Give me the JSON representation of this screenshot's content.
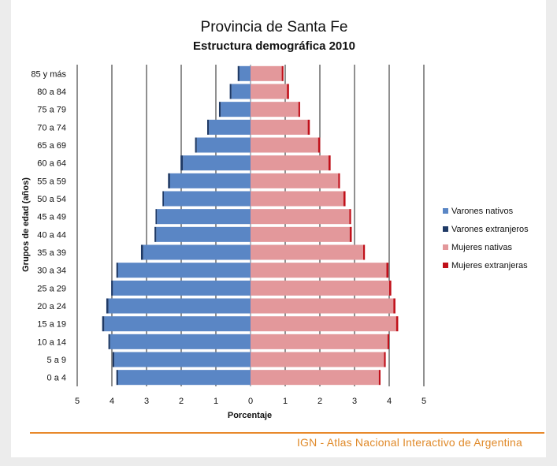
{
  "chart_data": {
    "type": "bar",
    "title": "Provincia de Santa Fe",
    "subtitle": "Estructura demográfica 2010",
    "xlabel": "Porcentaje",
    "ylabel": "Grupos de edad (años)",
    "xlim": [
      -5,
      5
    ],
    "x_tick_labels": [
      "5",
      "4",
      "3",
      "2",
      "1",
      "0",
      "1",
      "2",
      "3",
      "4",
      "5"
    ],
    "grid": true,
    "legend_position": "right",
    "categories": [
      "85 y más",
      "80 a 84",
      "75 a 79",
      "70 a 74",
      "65 a 69",
      "60 a 64",
      "55 a 59",
      "50 a 54",
      "45 a 49",
      "40 a 44",
      "35 a 39",
      "30 a 34",
      "25 a 29",
      "20 a 24",
      "15 a 19",
      "10 a 14",
      "5 a 9",
      "0 a 4"
    ],
    "series": [
      {
        "name": "Varones nativos",
        "color": "#5a86c5",
        "side": "left",
        "values": [
          0.32,
          0.55,
          0.86,
          1.2,
          1.55,
          1.95,
          2.32,
          2.5,
          2.7,
          2.72,
          3.1,
          3.82,
          3.97,
          4.1,
          4.22,
          4.05,
          3.93,
          3.82
        ]
      },
      {
        "name": "Varones extranjeros",
        "color": "#1f3a66",
        "side": "left",
        "values": [
          0.05,
          0.05,
          0.05,
          0.05,
          0.05,
          0.07,
          0.06,
          0.04,
          0.04,
          0.05,
          0.06,
          0.05,
          0.05,
          0.06,
          0.06,
          0.05,
          0.05,
          0.05
        ]
      },
      {
        "name": "Mujeres nativas",
        "color": "#e3989b",
        "side": "right",
        "values": [
          0.9,
          1.05,
          1.38,
          1.65,
          1.95,
          2.25,
          2.53,
          2.68,
          2.85,
          2.86,
          3.25,
          3.92,
          4.0,
          4.12,
          4.2,
          3.95,
          3.85,
          3.7
        ]
      },
      {
        "name": "Mujeres extranjeras",
        "color": "#c0101a",
        "side": "right",
        "values": [
          0.05,
          0.06,
          0.05,
          0.06,
          0.06,
          0.06,
          0.05,
          0.06,
          0.05,
          0.06,
          0.05,
          0.06,
          0.06,
          0.06,
          0.06,
          0.05,
          0.05,
          0.05
        ]
      }
    ]
  },
  "footer": {
    "source": "IGN - Atlas Nacional Interactivo de Argentina"
  }
}
